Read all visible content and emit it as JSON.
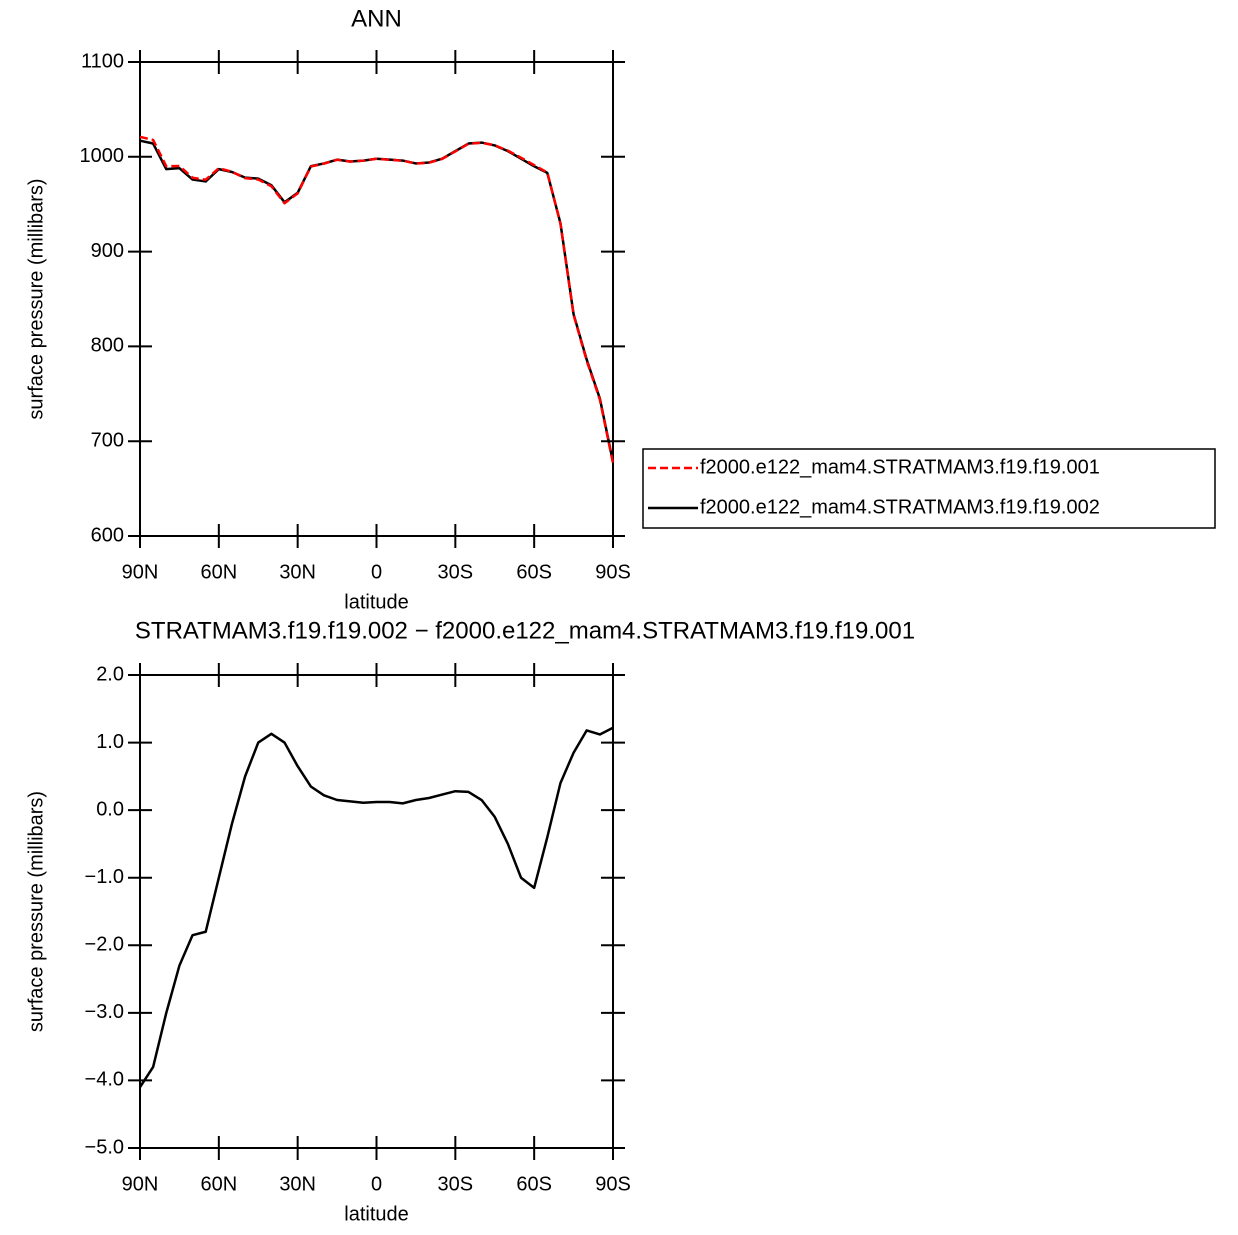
{
  "chart_data": [
    {
      "type": "line",
      "title": "ANN",
      "xlabel": "latitude",
      "ylabel": "surface pressure (millibars)",
      "x": [
        90,
        85,
        80,
        75,
        70,
        65,
        60,
        55,
        50,
        45,
        40,
        35,
        30,
        25,
        20,
        15,
        10,
        5,
        0,
        -5,
        -10,
        -15,
        -20,
        -25,
        -30,
        -35,
        -40,
        -45,
        -50,
        -55,
        -60,
        -65,
        -70,
        -75,
        -80,
        -85,
        -90
      ],
      "series": [
        {
          "name": "f2000.e122_mam4.STRATMAM3.f19.f19.001",
          "color": "#ff0000",
          "dash": true,
          "values": [
            1021.1,
            1017.8,
            990,
            990.3,
            977.9,
            975.8,
            988,
            984.2,
            977.5,
            976,
            968.9,
            951,
            961.4,
            989.7,
            992.8,
            996.9,
            994.9,
            995.9,
            997.9,
            996.9,
            995.9,
            992.9,
            993.8,
            997.8,
            1005.7,
            1013.7,
            1014.8,
            1012.1,
            1006.5,
            999,
            991.2,
            983.4,
            929.6,
            833.2,
            784.8,
            743.9,
            676.8
          ]
        },
        {
          "name": "f2000.e122_mam4.STRATMAM3.f19.f19.002",
          "color": "#000000",
          "dash": false,
          "values": [
            1017,
            1014,
            987,
            988,
            976,
            974,
            987,
            984,
            978,
            977,
            970,
            952,
            962,
            990,
            993,
            997,
            995,
            996,
            998,
            997,
            996,
            993,
            994,
            998,
            1006,
            1014,
            1015,
            1012,
            1006,
            998,
            990,
            983,
            930,
            834,
            786,
            745,
            678
          ]
        }
      ],
      "xlim": [
        90,
        -90
      ],
      "xticks": [
        {
          "value": 90,
          "label": "90N"
        },
        {
          "value": 60,
          "label": "60N"
        },
        {
          "value": 30,
          "label": "30N"
        },
        0,
        {
          "value": -30,
          "label": "30S"
        },
        {
          "value": -60,
          "label": "60S"
        },
        {
          "value": -90,
          "label": "90S"
        }
      ],
      "ylim": [
        600,
        1100
      ],
      "yticks": [
        600,
        700,
        800,
        900,
        1000,
        1100
      ],
      "legend": "right"
    },
    {
      "type": "line",
      "title": "STRATMAM3.f19.f19.002 − f2000.e122_mam4.STRATMAM3.f19.f19.001",
      "xlabel": "latitude",
      "ylabel": "surface pressure (millibars)",
      "x": [
        90,
        85,
        80,
        75,
        70,
        65,
        60,
        55,
        50,
        45,
        40,
        35,
        30,
        25,
        20,
        15,
        10,
        5,
        0,
        -5,
        -10,
        -15,
        -20,
        -25,
        -30,
        -35,
        -40,
        -45,
        -50,
        -55,
        -60,
        -65,
        -70,
        -75,
        -80,
        -85,
        -90
      ],
      "series": [
        {
          "color": "#000000",
          "dash": false,
          "values": [
            -4.1,
            -3.8,
            -3.0,
            -2.3,
            -1.85,
            -1.8,
            -1.0,
            -0.2,
            0.5,
            1.0,
            1.13,
            1.0,
            0.65,
            0.35,
            0.22,
            0.15,
            0.13,
            0.11,
            0.12,
            0.12,
            0.1,
            0.15,
            0.18,
            0.23,
            0.28,
            0.27,
            0.15,
            -0.1,
            -0.5,
            -1.0,
            -1.15,
            -0.4,
            0.4,
            0.85,
            1.18,
            1.12,
            1.22
          ]
        }
      ],
      "xlim": [
        90,
        -90
      ],
      "xticks": [
        {
          "value": 90,
          "label": "90N"
        },
        {
          "value": 60,
          "label": "60N"
        },
        {
          "value": 30,
          "label": "30N"
        },
        0,
        {
          "value": -30,
          "label": "30S"
        },
        {
          "value": -60,
          "label": "60S"
        },
        {
          "value": -90,
          "label": "90S"
        }
      ],
      "ylim": [
        -5,
        2
      ],
      "yticks": [
        {
          "value": -5,
          "label": "−5.0"
        },
        {
          "value": -4,
          "label": "−4.0"
        },
        {
          "value": -3,
          "label": "−3.0"
        },
        {
          "value": -2,
          "label": "−2.0"
        },
        {
          "value": -1,
          "label": "−1.0"
        },
        {
          "value": 0,
          "label": "0.0"
        },
        {
          "value": 1,
          "label": "1.0"
        },
        {
          "value": 2,
          "label": "2.0"
        }
      ]
    }
  ]
}
